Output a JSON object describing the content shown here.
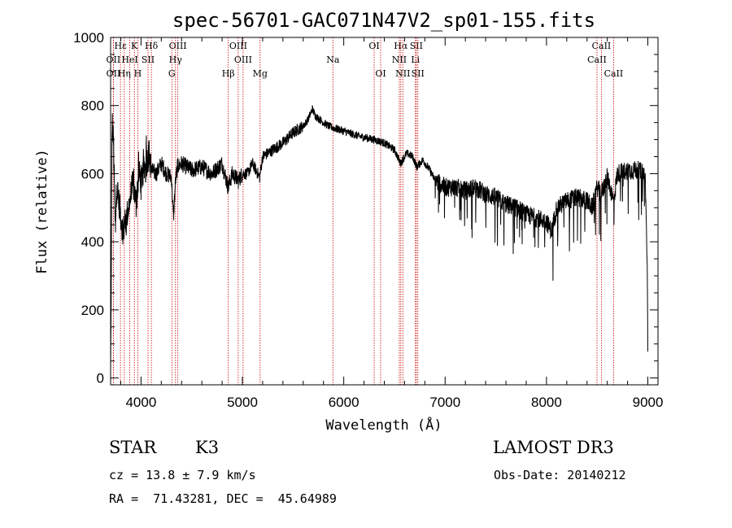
{
  "chart_data": {
    "type": "line",
    "title": "spec-56701-GAC071N47V2_sp01-155.fits",
    "xlabel": "Wavelength (Å)",
    "ylabel": "Flux (relative)",
    "xlim": [
      3700,
      9100
    ],
    "ylim": [
      -20,
      1000
    ],
    "xticks": [
      4000,
      5000,
      6000,
      7000,
      8000,
      9000
    ],
    "yticks": [
      0,
      200,
      400,
      600,
      800,
      1000
    ],
    "line_color": "#000000",
    "marker_color": "#cc0000",
    "spectrum_anchors": {
      "x": [
        3700,
        3705,
        3715,
        3730,
        3745,
        3760,
        3790,
        3820,
        3850,
        3890,
        3920,
        3950,
        3980,
        4000,
        4040,
        4080,
        4100,
        4150,
        4200,
        4250,
        4300,
        4320,
        4340,
        4360,
        4400,
        4500,
        4600,
        4700,
        4800,
        4860,
        4900,
        4960,
        5000,
        5050,
        5100,
        5170,
        5200,
        5300,
        5400,
        5500,
        5600,
        5650,
        5690,
        5720,
        5760,
        5800,
        5850,
        5890,
        5950,
        6050,
        6150,
        6300,
        6400,
        6500,
        6560,
        6620,
        6680,
        6720,
        6780,
        6850,
        6900,
        7000,
        7100,
        7200,
        7300,
        7400,
        7500,
        7600,
        7700,
        7800,
        7900,
        8000,
        8050,
        8100,
        8200,
        8300,
        8400,
        8450,
        8500,
        8540,
        8600,
        8662,
        8700,
        8800,
        8900,
        8960,
        8975,
        8985,
        8995,
        9000
      ],
      "y": [
        0,
        200,
        760,
        680,
        440,
        560,
        500,
        430,
        460,
        520,
        570,
        520,
        600,
        580,
        620,
        660,
        610,
        600,
        630,
        600,
        590,
        470,
        580,
        620,
        630,
        610,
        620,
        600,
        630,
        560,
        600,
        580,
        600,
        600,
        630,
        590,
        650,
        670,
        690,
        720,
        740,
        760,
        790,
        770,
        760,
        750,
        740,
        735,
        730,
        720,
        710,
        700,
        690,
        670,
        630,
        660,
        650,
        620,
        640,
        610,
        580,
        560,
        560,
        550,
        560,
        540,
        530,
        510,
        500,
        480,
        470,
        460,
        430,
        500,
        520,
        530,
        520,
        500,
        560,
        540,
        590,
        520,
        600,
        610,
        610,
        600,
        580,
        450,
        300,
        100
      ]
    },
    "spectral_lines": [
      {
        "label": "Hε",
        "x": 3797,
        "row": 0
      },
      {
        "label": "K",
        "x": 3934,
        "row": 0
      },
      {
        "label": "Hδ",
        "x": 4102,
        "row": 0
      },
      {
        "label": "OIII",
        "x": 4363,
        "row": 0
      },
      {
        "label": "OIII",
        "x": 4959,
        "row": 0
      },
      {
        "label": "OI",
        "x": 6300,
        "row": 0
      },
      {
        "label": "Hα",
        "x": 6563,
        "row": 0
      },
      {
        "label": "SII",
        "x": 6716,
        "row": 0
      },
      {
        "label": "CaII",
        "x": 8542,
        "row": 0
      },
      {
        "label": "OII",
        "x": 3727,
        "row": 1
      },
      {
        "label": "HeI",
        "x": 3889,
        "row": 1
      },
      {
        "label": "SII",
        "x": 4069,
        "row": 1
      },
      {
        "label": "Hγ",
        "x": 4340,
        "row": 1
      },
      {
        "label": "OIII",
        "x": 5007,
        "row": 1
      },
      {
        "label": "Na",
        "x": 5893,
        "row": 1
      },
      {
        "label": "NII",
        "x": 6548,
        "row": 1
      },
      {
        "label": "Li",
        "x": 6707,
        "row": 1
      },
      {
        "label": "CaII",
        "x": 8498,
        "row": 1
      },
      {
        "label": "OII",
        "x": 3728,
        "row": 2
      },
      {
        "label": "Hη",
        "x": 3835,
        "row": 2
      },
      {
        "label": "H",
        "x": 3968,
        "row": 2
      },
      {
        "label": "G",
        "x": 4304,
        "row": 2
      },
      {
        "label": "Hβ",
        "x": 4861,
        "row": 2
      },
      {
        "label": "Mg",
        "x": 5175,
        "row": 2
      },
      {
        "label": "OI",
        "x": 6364,
        "row": 2
      },
      {
        "label": "NII",
        "x": 6583,
        "row": 2
      },
      {
        "label": "SII",
        "x": 6731,
        "row": 2
      },
      {
        "label": "CaII",
        "x": 8662,
        "row": 2
      }
    ]
  },
  "info": {
    "class_label": "STAR",
    "subclass": "K3",
    "survey": "LAMOST DR3",
    "cz": "cz = 13.8 ± 7.9 km/s",
    "obs_date": "Obs-Date: 20140212",
    "coords": "RA =  71.43281, DEC =  45.64989"
  }
}
